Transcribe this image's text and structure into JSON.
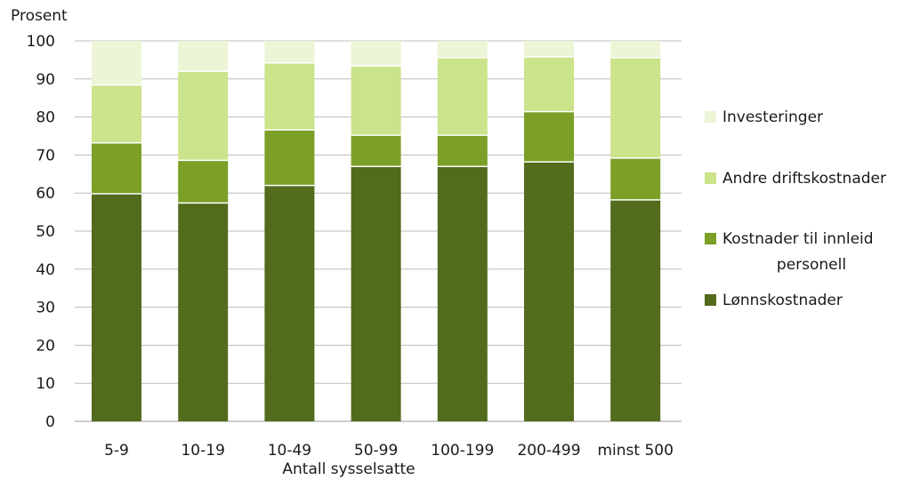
{
  "chart_data": {
    "type": "bar",
    "stacked": true,
    "title": "",
    "ylabel": "Prosent",
    "xlabel": "Antall sysselsatte",
    "ylim": [
      0,
      100
    ],
    "yticks": [
      0,
      10,
      20,
      30,
      40,
      50,
      60,
      70,
      80,
      90,
      100
    ],
    "grid": true,
    "legend_position": "right",
    "categories": [
      "5-9",
      "10-19",
      "10-49",
      "50-99",
      "100-199",
      "200-499",
      "minst 500"
    ],
    "series": [
      {
        "name": "Lønnskostnader",
        "color": "#536b1c",
        "values": [
          59.8,
          57.4,
          62.0,
          67.0,
          67.0,
          68.2,
          58.2
        ]
      },
      {
        "name": "Kostnader til innleid personell",
        "color": "#7b9f27",
        "values": [
          13.4,
          11.2,
          14.6,
          8.2,
          8.2,
          13.2,
          11.0
        ]
      },
      {
        "name": "Andre driftskostnader",
        "color": "#cbe38a",
        "values": [
          15.2,
          23.4,
          17.6,
          18.2,
          20.4,
          14.4,
          26.4
        ]
      },
      {
        "name": "Investeringer",
        "color": "#ecf5d6",
        "values": [
          11.6,
          8.0,
          5.8,
          6.6,
          4.4,
          4.2,
          4.4
        ]
      }
    ],
    "legend_order": [
      "Investeringer",
      "Andre driftskostnader",
      "Kostnader til innleid personell",
      "Lønnskostnader"
    ],
    "legend_lines": {
      "Kostnader til innleid personell": [
        "Kostnader til innleid",
        "personell"
      ]
    }
  }
}
